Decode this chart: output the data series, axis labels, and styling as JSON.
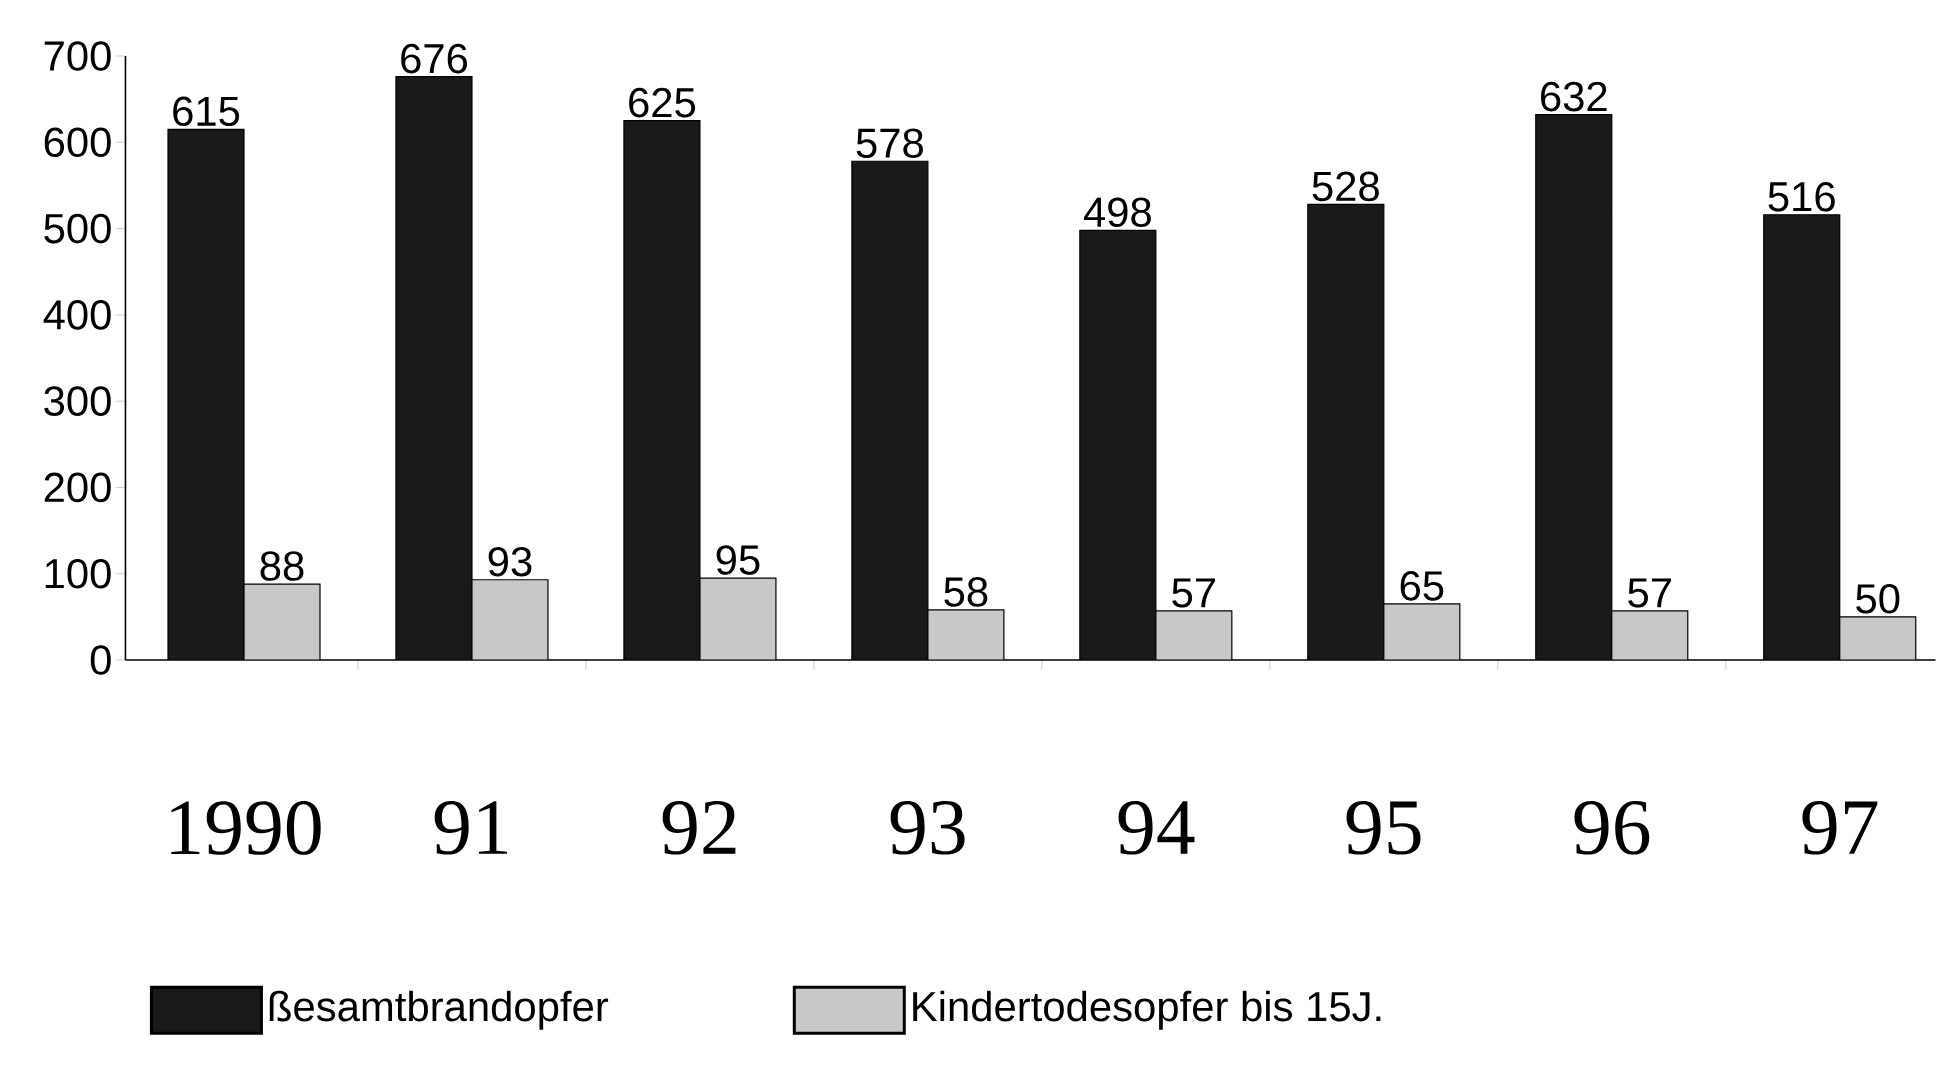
{
  "chart_data": {
    "type": "bar",
    "categories": [
      "1990",
      "91",
      "92",
      "93",
      "94",
      "95",
      "96",
      "97"
    ],
    "series": [
      {
        "name": "ßesamtbrandopfer",
        "color": "#1a1a1a",
        "values": [
          615,
          676,
          625,
          578,
          498,
          528,
          632,
          516
        ]
      },
      {
        "name": "Kindertodesopfer bis 15J.",
        "color": "#c8c8c8",
        "values": [
          88,
          93,
          95,
          58,
          57,
          65,
          57,
          50
        ]
      }
    ],
    "ylim": [
      0,
      700
    ],
    "yticks": [
      0,
      100,
      200,
      300,
      400,
      500,
      600,
      700
    ],
    "data_labels": true,
    "grid": false,
    "legend": "bottom"
  }
}
